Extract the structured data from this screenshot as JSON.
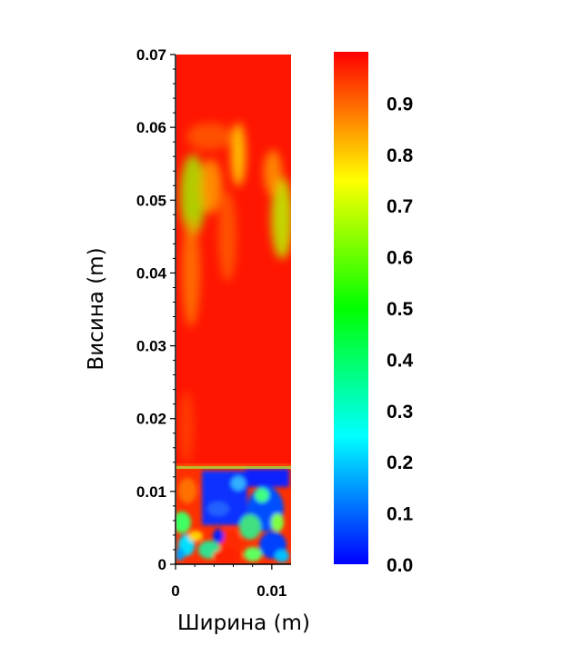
{
  "chart_data": {
    "type": "heatmap",
    "title": "",
    "xlabel": "Ширина (m)",
    "ylabel": "Висина (m)",
    "xlim": [
      0,
      0.012
    ],
    "ylim": [
      0,
      0.07
    ],
    "x_ticks": [
      {
        "value": 0,
        "label": "0"
      },
      {
        "value": 0.01,
        "label": "0.01"
      }
    ],
    "y_ticks": [
      {
        "value": 0,
        "label": "0"
      },
      {
        "value": 0.01,
        "label": "0.01"
      },
      {
        "value": 0.02,
        "label": "0.02"
      },
      {
        "value": 0.03,
        "label": "0.03"
      },
      {
        "value": 0.04,
        "label": "0.04"
      },
      {
        "value": 0.05,
        "label": "0.05"
      },
      {
        "value": 0.06,
        "label": "0.06"
      },
      {
        "value": 0.07,
        "label": "0.07"
      }
    ],
    "colorbar": {
      "range": [
        0,
        1
      ],
      "ticks": [
        {
          "value": 0.0,
          "label": "0.0"
        },
        {
          "value": 0.1,
          "label": "0.1"
        },
        {
          "value": 0.2,
          "label": "0.2"
        },
        {
          "value": 0.3,
          "label": "0.3"
        },
        {
          "value": 0.4,
          "label": "0.4"
        },
        {
          "value": 0.5,
          "label": "0.5"
        },
        {
          "value": 0.6,
          "label": "0.6"
        },
        {
          "value": 0.7,
          "label": "0.7"
        },
        {
          "value": 0.8,
          "label": "0.8"
        },
        {
          "value": 0.9,
          "label": "0.9"
        }
      ],
      "colormap": [
        "#0000ff",
        "#00ffff",
        "#00ff00",
        "#ffff00",
        "#ff0000"
      ]
    },
    "field_description": "Mostly high values (~0.9-1.0) above ~0.013 m; mid values (0.5-0.8) in streaks between 0.04 and 0.06 m; low and mixed values (0.0-0.7) below ~0.013 m."
  }
}
